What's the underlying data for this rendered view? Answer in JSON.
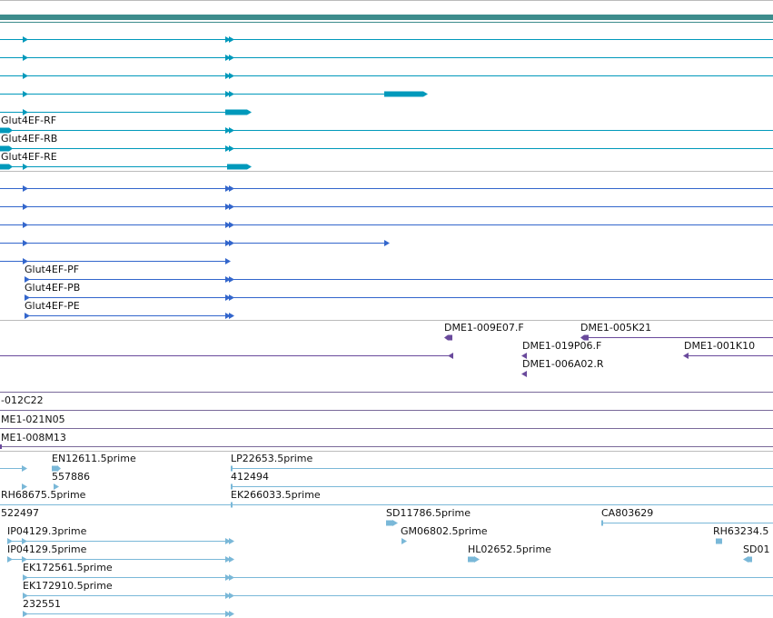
{
  "colors": {
    "gene_band": "#3d8c8c",
    "transcript": "#0099bb",
    "protein": "#3366cc",
    "clone": "#6a4a9c",
    "clone_line": "#7a6a9a",
    "est": "#7ab8d8",
    "divider": "#bbbbbb"
  },
  "transcript_labels": [
    "Glut4EF-RF",
    "Glut4EF-RB",
    "Glut4EF-RE"
  ],
  "protein_labels": [
    "Glut4EF-PF",
    "Glut4EF-PB",
    "Glut4EF-PE"
  ],
  "clone_labels": [
    "DME1-009E07.F",
    "DME1-005K21",
    "DME1-019P06.F",
    "DME1-001K10",
    "DME1-006A02.R",
    "-012C22",
    "ME1-021N05",
    "ME1-008M13"
  ],
  "est_labels": [
    "EN12611.5prime",
    "LP22653.5prime",
    "557886",
    "412494",
    "RH68675.5prime",
    "EK266033.5prime",
    "522497",
    "SD11786.5prime",
    "CA803629",
    "IP04129.3prime",
    "GM06802.5prime",
    "RH63234.5",
    "IP04129.5prime",
    "HL02652.5prime",
    "SD01",
    "EK172561.5prime",
    "EK172910.5prime",
    "232551"
  ]
}
